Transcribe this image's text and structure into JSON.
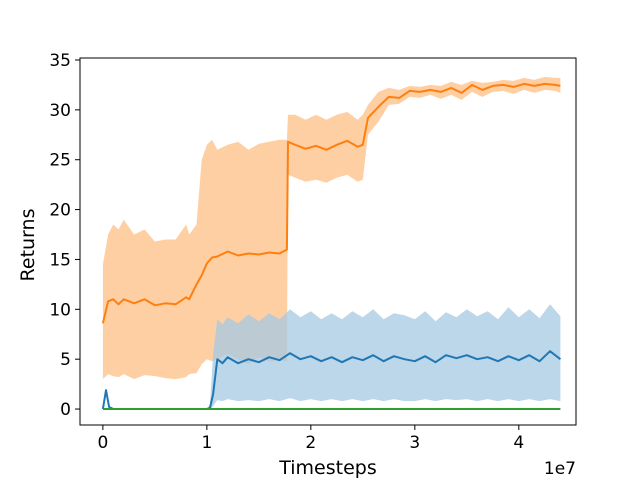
{
  "chart_data": {
    "type": "line",
    "title": "",
    "xlabel": "Timesteps",
    "ylabel": "Returns",
    "x_offset_label": "1e7",
    "xlim": [
      -0.22,
      4.55
    ],
    "ylim": [
      -1.6,
      35.2
    ],
    "xticks": [
      0,
      1,
      2,
      3,
      4
    ],
    "xtick_labels": [
      "0",
      "1",
      "2",
      "3",
      "4"
    ],
    "yticks": [
      0,
      5,
      10,
      15,
      20,
      25,
      30,
      35
    ],
    "ytick_labels": [
      "0",
      "5",
      "10",
      "15",
      "20",
      "25",
      "30",
      "35"
    ],
    "grid": false,
    "legend": "none",
    "series": [
      {
        "color": "#ff7f0e",
        "band_color": "#ffbf86",
        "x": [
          0,
          0.05,
          0.1,
          0.15,
          0.2,
          0.3,
          0.4,
          0.5,
          0.6,
          0.7,
          0.8,
          0.83,
          0.9,
          0.95,
          1.0,
          1.05,
          1.1,
          1.2,
          1.3,
          1.4,
          1.5,
          1.6,
          1.7,
          1.77,
          1.78,
          1.85,
          1.95,
          2.05,
          2.15,
          2.25,
          2.35,
          2.45,
          2.5,
          2.55,
          2.65,
          2.75,
          2.85,
          2.95,
          3.05,
          3.15,
          3.25,
          3.35,
          3.45,
          3.55,
          3.65,
          3.75,
          3.85,
          3.95,
          4.05,
          4.15,
          4.25,
          4.35,
          4.4
        ],
        "mean": [
          8.6,
          10.8,
          11.0,
          10.5,
          11.0,
          10.6,
          11.0,
          10.4,
          10.6,
          10.5,
          11.2,
          11.0,
          12.5,
          13.4,
          14.6,
          15.2,
          15.3,
          15.8,
          15.4,
          15.6,
          15.5,
          15.7,
          15.6,
          16.0,
          26.8,
          26.5,
          26.1,
          26.4,
          26.0,
          26.5,
          26.9,
          26.3,
          26.5,
          29.2,
          30.3,
          31.3,
          31.2,
          31.9,
          31.8,
          32.0,
          31.8,
          32.2,
          31.7,
          32.5,
          32.0,
          32.4,
          32.5,
          32.3,
          32.6,
          32.4,
          32.6,
          32.5,
          32.4
        ],
        "upper": [
          14.5,
          17.5,
          18.5,
          18.0,
          19.0,
          17.5,
          18.0,
          16.8,
          17.0,
          17.0,
          18.5,
          17.5,
          18.5,
          25.0,
          26.5,
          27.0,
          26.0,
          26.5,
          26.8,
          26.0,
          26.6,
          26.8,
          27.0,
          27.0,
          29.5,
          29.5,
          29.0,
          29.5,
          29.0,
          29.5,
          29.8,
          29.0,
          29.5,
          30.5,
          31.8,
          32.2,
          32.0,
          32.4,
          32.3,
          32.5,
          32.4,
          32.8,
          32.5,
          32.9,
          32.7,
          32.8,
          33.0,
          32.9,
          33.2,
          33.0,
          33.3,
          33.2,
          33.2
        ],
        "lower": [
          3.0,
          3.5,
          3.3,
          3.2,
          3.5,
          3.0,
          3.4,
          3.3,
          3.1,
          3.0,
          3.2,
          3.5,
          3.6,
          4.5,
          5.0,
          4.8,
          5.0,
          5.5,
          5.0,
          4.5,
          5.2,
          4.8,
          4.9,
          4.8,
          23.5,
          23.2,
          22.8,
          23.0,
          22.7,
          23.2,
          23.5,
          22.8,
          23.0,
          27.5,
          28.8,
          30.5,
          30.6,
          31.3,
          31.2,
          31.5,
          31.1,
          31.5,
          31.0,
          31.8,
          31.3,
          31.8,
          31.9,
          31.6,
          32.0,
          31.7,
          32.0,
          31.9,
          31.7
        ]
      },
      {
        "color": "#1f77b4",
        "band_color": "#a6c8e3",
        "x": [
          0,
          0.03,
          0.06,
          0.1,
          0.3,
          0.5,
          0.7,
          0.9,
          1.0,
          1.03,
          1.06,
          1.1,
          1.15,
          1.2,
          1.3,
          1.4,
          1.5,
          1.6,
          1.7,
          1.8,
          1.9,
          2.0,
          2.1,
          2.2,
          2.3,
          2.4,
          2.5,
          2.6,
          2.7,
          2.8,
          2.9,
          3.0,
          3.1,
          3.2,
          3.3,
          3.4,
          3.5,
          3.6,
          3.7,
          3.8,
          3.9,
          4.0,
          4.1,
          4.2,
          4.3,
          4.4
        ],
        "mean": [
          0,
          1.9,
          0.2,
          0.0,
          0.0,
          0.0,
          0.0,
          0.0,
          0.0,
          0.1,
          1.5,
          5.0,
          4.6,
          5.2,
          4.6,
          5.0,
          4.7,
          5.2,
          4.9,
          5.6,
          5.0,
          5.3,
          4.8,
          5.2,
          4.7,
          5.2,
          4.9,
          5.4,
          4.8,
          5.3,
          5.0,
          4.8,
          5.3,
          4.7,
          5.4,
          5.1,
          5.4,
          5.0,
          5.2,
          4.8,
          5.3,
          4.9,
          5.4,
          4.8,
          5.8,
          5.0
        ],
        "upper": [
          0,
          1.9,
          0.2,
          0.0,
          0.0,
          0.0,
          0.0,
          0.0,
          0.0,
          0.5,
          5.5,
          9.0,
          8.5,
          9.2,
          8.6,
          9.5,
          8.8,
          9.6,
          9.0,
          10.0,
          9.2,
          9.8,
          9.0,
          9.6,
          9.0,
          9.8,
          9.2,
          10.0,
          9.0,
          9.6,
          9.4,
          9.0,
          9.8,
          8.8,
          9.7,
          9.2,
          10.0,
          9.3,
          9.8,
          9.0,
          10.2,
          9.2,
          10.0,
          9.1,
          10.5,
          9.3
        ],
        "lower": [
          0,
          1.9,
          0.2,
          0.0,
          0.0,
          0.0,
          0.0,
          0.0,
          0.0,
          0.0,
          0.3,
          0.9,
          0.8,
          1.0,
          0.8,
          0.9,
          0.8,
          1.0,
          0.8,
          1.1,
          0.8,
          1.0,
          0.8,
          1.0,
          0.8,
          1.0,
          0.8,
          1.0,
          0.8,
          1.0,
          0.8,
          0.8,
          1.0,
          0.8,
          1.0,
          0.9,
          1.0,
          0.8,
          1.0,
          0.8,
          1.0,
          0.8,
          1.0,
          0.8,
          1.0,
          0.8
        ]
      },
      {
        "color": "#2ca02c",
        "band_color": "#a8d8a8",
        "x": [
          0,
          4.4
        ],
        "mean": [
          0,
          0
        ],
        "upper": [
          0,
          0
        ],
        "lower": [
          0,
          0
        ]
      }
    ]
  }
}
